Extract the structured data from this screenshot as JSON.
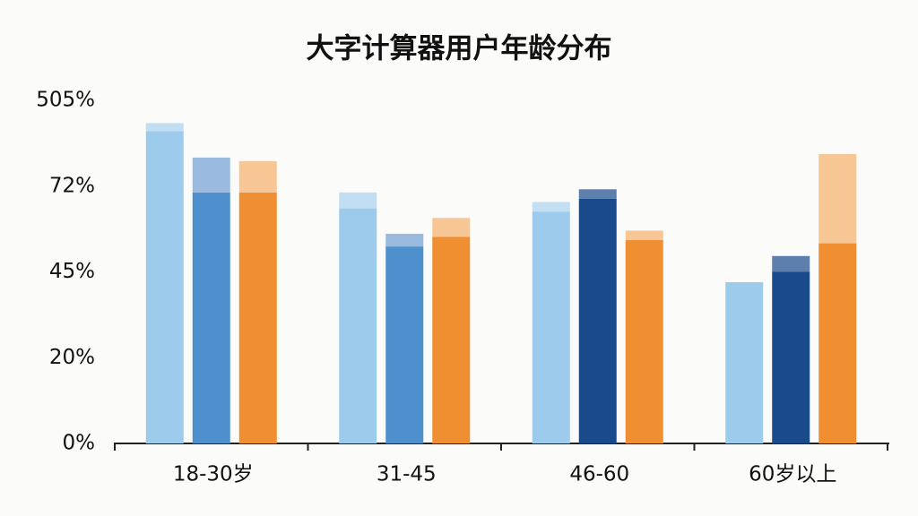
{
  "chart_data": {
    "type": "bar",
    "title": "大字计算器用户年龄分布",
    "categories": [
      "18-30岁",
      "31-45",
      "46-60",
      "60岁以上"
    ],
    "yscale": "piecewise",
    "ylim": [
      0,
      505
    ],
    "yticks": [
      {
        "value": 0,
        "label": "0%"
      },
      {
        "value": 20,
        "label": "20%"
      },
      {
        "value": 45,
        "label": "45%"
      },
      {
        "value": 72,
        "label": "72%"
      },
      {
        "value": 505,
        "label": "505%"
      }
    ],
    "series": [
      {
        "colors": [
          "#9dcbec",
          "#9dcbec",
          "#9dcbec",
          "#9dcbec"
        ],
        "cap_colors": [
          "#c2def3",
          "#c2def3",
          "#c2def3",
          "#c2def3"
        ],
        "values": [
          350,
          65,
          64,
          42
        ],
        "cap_values": [
          40,
          5,
          3,
          0
        ]
      },
      {
        "colors": [
          "#4e8fce",
          "#4e8fce",
          "#1a4a8a",
          "#1a4a8a"
        ],
        "cap_colors": [
          "#9ab9de",
          "#9ab9de",
          "#5d7fae",
          "#5d7fae"
        ],
        "values": [
          70,
          53,
          68,
          45
        ],
        "cap_values": [
          146,
          4,
          3,
          5
        ]
      },
      {
        "colors": [
          "#f08f32",
          "#f08f32",
          "#f08f32",
          "#f08f32"
        ],
        "cap_colors": [
          "#f6c795",
          "#f6c795",
          "#f6c795",
          "#f6c795"
        ],
        "values": [
          70,
          56,
          55,
          54
        ],
        "cap_values": [
          128,
          6,
          3,
          180
        ]
      }
    ]
  }
}
